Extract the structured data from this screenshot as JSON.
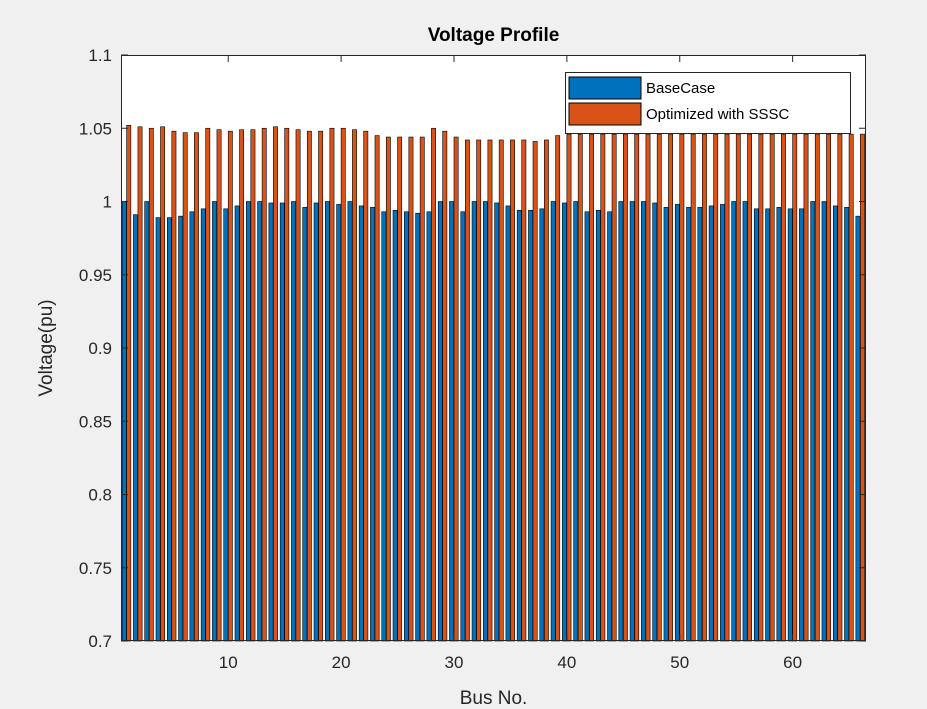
{
  "chart_data": {
    "type": "bar",
    "title": "Voltage Profile",
    "xlabel": "Bus No.",
    "ylabel": "Voltage(pu)",
    "ylim": [
      0.7,
      1.1
    ],
    "xlim": [
      0.5,
      66.5
    ],
    "yticks": [
      "0.7",
      "0.75",
      "0.8",
      "0.85",
      "0.9",
      "0.95",
      "1",
      "1.05",
      "1.1"
    ],
    "xticks": [
      "10",
      "20",
      "30",
      "40",
      "50",
      "60"
    ],
    "grid": false,
    "legend_position": "top-right",
    "categories": [
      1,
      2,
      3,
      4,
      5,
      6,
      7,
      8,
      9,
      10,
      11,
      12,
      13,
      14,
      15,
      16,
      17,
      18,
      19,
      20,
      21,
      22,
      23,
      24,
      25,
      26,
      27,
      28,
      29,
      30,
      31,
      32,
      33,
      34,
      35,
      36,
      37,
      38,
      39,
      40,
      41,
      42,
      43,
      44,
      45,
      46,
      47,
      48,
      49,
      50,
      51,
      52,
      53,
      54,
      55,
      56,
      57,
      58,
      59,
      60,
      61,
      62,
      63,
      64,
      65,
      66
    ],
    "series": [
      {
        "name": "BaseCase",
        "color": "#0072bd",
        "values": [
          1.0,
          0.991,
          1.0,
          0.989,
          0.989,
          0.99,
          0.993,
          0.995,
          1.0,
          0.995,
          0.997,
          1.0,
          1.0,
          0.999,
          0.999,
          1.0,
          0.996,
          0.999,
          1.0,
          0.998,
          1.0,
          0.997,
          0.996,
          0.993,
          0.994,
          0.993,
          0.992,
          0.993,
          1.0,
          1.0,
          0.993,
          1.0,
          1.0,
          0.999,
          0.997,
          0.994,
          0.994,
          0.995,
          1.0,
          0.999,
          1.0,
          0.993,
          0.994,
          0.993,
          1.0,
          1.0,
          1.0,
          0.999,
          0.996,
          0.998,
          0.996,
          0.996,
          0.997,
          0.998,
          1.0,
          1.0,
          0.995,
          0.995,
          0.996,
          0.995,
          0.995,
          1.0,
          1.0,
          0.997,
          0.996,
          0.99
        ]
      },
      {
        "name": "Optimized with SSSC",
        "color": "#d95319",
        "values": [
          1.052,
          1.051,
          1.05,
          1.051,
          1.048,
          1.047,
          1.047,
          1.05,
          1.049,
          1.048,
          1.049,
          1.049,
          1.05,
          1.051,
          1.05,
          1.049,
          1.048,
          1.048,
          1.05,
          1.05,
          1.049,
          1.048,
          1.045,
          1.044,
          1.044,
          1.044,
          1.044,
          1.05,
          1.048,
          1.044,
          1.042,
          1.042,
          1.042,
          1.042,
          1.042,
          1.042,
          1.041,
          1.042,
          1.045,
          1.046,
          1.046,
          1.046,
          1.046,
          1.046,
          1.046,
          1.046,
          1.046,
          1.046,
          1.046,
          1.046,
          1.046,
          1.046,
          1.046,
          1.046,
          1.046,
          1.046,
          1.046,
          1.046,
          1.046,
          1.046,
          1.046,
          1.046,
          1.046,
          1.046,
          1.046,
          1.046
        ]
      }
    ]
  }
}
